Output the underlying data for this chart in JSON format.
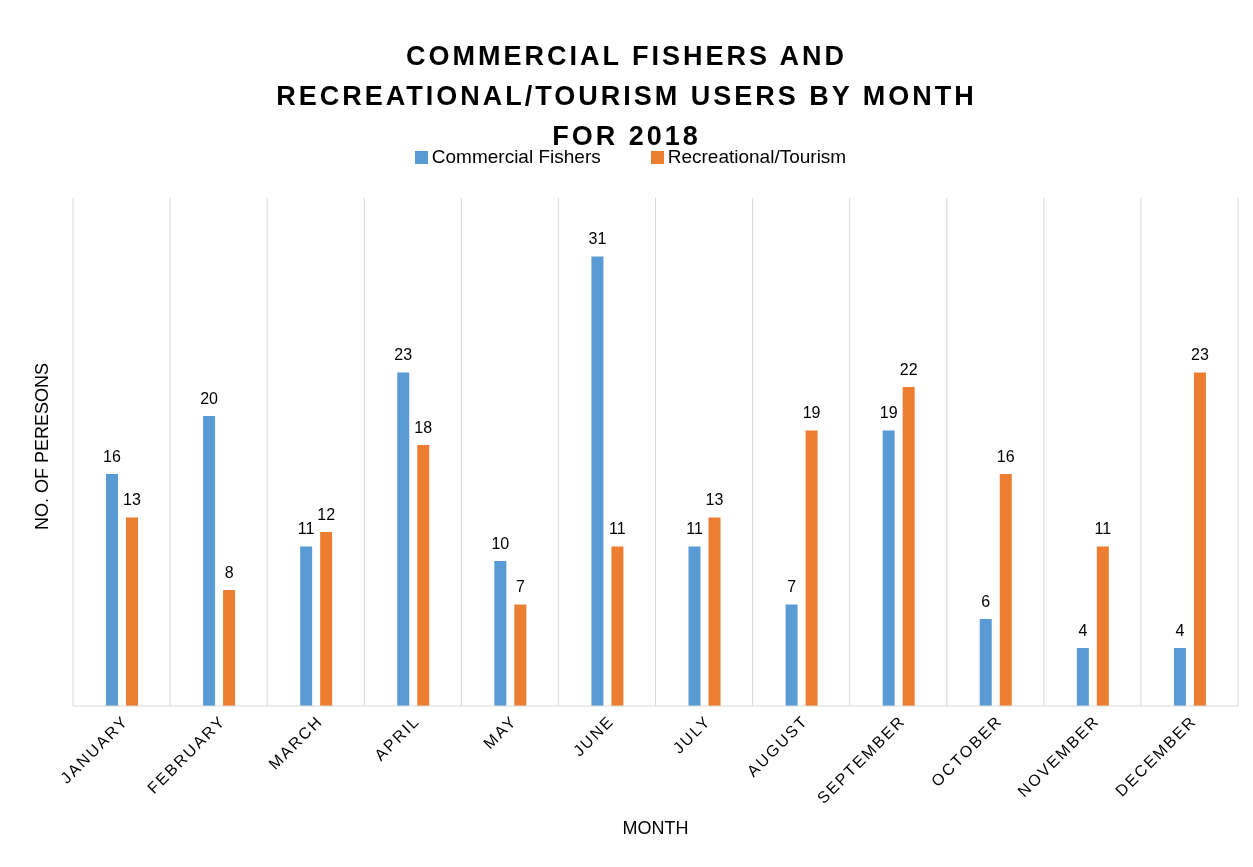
{
  "chart_data": {
    "type": "bar",
    "title": "COMMERCIAL FISHERS AND RECREATIONAL/TOURISM USERS BY MONTH FOR 2018",
    "xlabel": "MONTH",
    "ylabel": "NO. OF PERESONS",
    "categories": [
      "JANUARY",
      "FEBRUARY",
      "MARCH",
      "APRIL",
      "MAY",
      "JUNE",
      "JULY",
      "AUGUST",
      "SEPTEMBER",
      "OCTOBER",
      "NOVEMBER",
      "DECEMBER"
    ],
    "series": [
      {
        "name": "Commercial Fishers",
        "color": "#5b9bd5",
        "values": [
          16,
          20,
          11,
          23,
          10,
          31,
          11,
          7,
          19,
          6,
          4,
          4
        ]
      },
      {
        "name": "Recreational/Tourism",
        "color": "#ed7d31",
        "values": [
          13,
          8,
          12,
          18,
          7,
          11,
          13,
          19,
          22,
          16,
          11,
          23
        ]
      }
    ],
    "data_labels": true,
    "grid": "x",
    "legend": "top",
    "tick_labels": "x"
  }
}
